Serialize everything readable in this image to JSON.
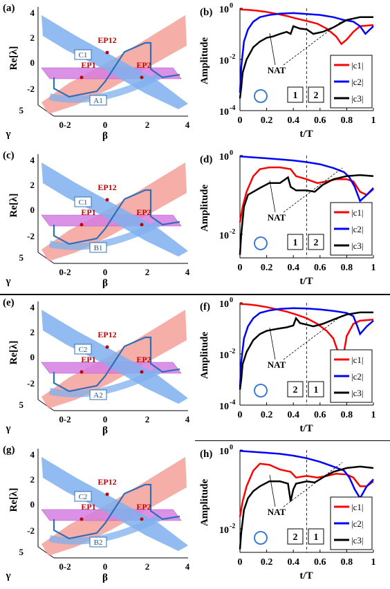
{
  "figure": {
    "separators": [
      true,
      true
    ]
  },
  "surface_panels": [
    {
      "id": "a",
      "panel_label": "(a)",
      "zlabel": "Re[λ]",
      "xlabel": "β",
      "ylabel": "γ",
      "z_ticks": [
        "4",
        "2",
        "0",
        "-2"
      ],
      "beta_ticks": [
        "0",
        "2",
        "4"
      ],
      "gamma_ticks": [
        "5",
        "0"
      ],
      "combined_tick": "0-2",
      "points": [
        {
          "label": "EP12",
          "color": "#c00000"
        },
        {
          "label": "EP1",
          "color": "#c00000"
        },
        {
          "label": "EP2",
          "color": "#c00000"
        }
      ],
      "boxes": [
        {
          "label": "C1"
        },
        {
          "label": "A1"
        }
      ]
    },
    {
      "id": "c",
      "panel_label": "(c)",
      "zlabel": "Re[λ]",
      "xlabel": "β",
      "ylabel": "γ",
      "z_ticks": [
        "4",
        "2",
        "0",
        "-2"
      ],
      "beta_ticks": [
        "0",
        "2",
        "4"
      ],
      "gamma_ticks": [
        "5",
        "0"
      ],
      "combined_tick": "0-2",
      "points": [
        {
          "label": "EP12",
          "color": "#c00000"
        },
        {
          "label": "EP1",
          "color": "#c00000"
        },
        {
          "label": "EP2",
          "color": "#c00000"
        }
      ],
      "boxes": [
        {
          "label": "C1"
        },
        {
          "label": "B1"
        }
      ]
    },
    {
      "id": "e",
      "panel_label": "(e)",
      "zlabel": "Re[λ]",
      "xlabel": "β",
      "ylabel": "γ",
      "z_ticks": [
        "4",
        "2",
        "0",
        "-2"
      ],
      "beta_ticks": [
        "0",
        "2",
        "4"
      ],
      "gamma_ticks": [
        "5",
        "0"
      ],
      "combined_tick": "0-2",
      "points": [
        {
          "label": "EP12",
          "color": "#c00000"
        },
        {
          "label": "EP1",
          "color": "#c00000"
        },
        {
          "label": "EP2",
          "color": "#c00000"
        }
      ],
      "boxes": [
        {
          "label": "C2"
        },
        {
          "label": "A2"
        }
      ]
    },
    {
      "id": "g",
      "panel_label": "(g)",
      "zlabel": "Re[λ]",
      "xlabel": "β",
      "ylabel": "γ",
      "z_ticks": [
        "4",
        "2",
        "0",
        "-2"
      ],
      "beta_ticks": [
        "0",
        "2",
        "4"
      ],
      "gamma_ticks": [
        "5",
        "0"
      ],
      "combined_tick": "0-2",
      "points": [
        {
          "label": "EP12",
          "color": "#c00000"
        },
        {
          "label": "EP1",
          "color": "#c00000"
        },
        {
          "label": "EP2",
          "color": "#c00000"
        }
      ],
      "boxes": [
        {
          "label": "C2"
        },
        {
          "label": "B2"
        }
      ]
    }
  ],
  "chart_data": [
    {
      "id": "b",
      "type": "line",
      "panel_label": "(b)",
      "title": "",
      "xlabel": "t/T",
      "ylabel": "Amplitude",
      "scale_y": "log",
      "xlim": [
        0,
        1
      ],
      "ylim_exp": [
        -4,
        0
      ],
      "x_ticks": [
        "0",
        "0.2",
        "0.4",
        "0.6",
        "0.8",
        "1"
      ],
      "y_ticks": [
        {
          "exp": 0,
          "label": "10",
          "sup": "0"
        },
        {
          "exp": -2,
          "label": "10",
          "sup": "-2"
        },
        {
          "exp": -4,
          "label": "10",
          "sup": "-4"
        }
      ],
      "annotation": "NAT",
      "boxes": [
        "1",
        "2"
      ],
      "legend_position": "bottom-right",
      "dashed_x": 0.5,
      "series": [
        {
          "name": "|c1|",
          "color": "#ff0000",
          "x": [
            0,
            0.05,
            0.12,
            0.2,
            0.28,
            0.35,
            0.42,
            0.5,
            0.58,
            0.65,
            0.72,
            0.76,
            0.8,
            0.85,
            0.9,
            1.0
          ],
          "y": [
            0.9,
            0.88,
            0.82,
            0.72,
            0.6,
            0.5,
            0.4,
            0.32,
            0.25,
            0.16,
            0.08,
            0.04,
            0.06,
            0.12,
            0.2,
            0.22
          ]
        },
        {
          "name": "|c2|",
          "color": "#0000ff",
          "x": [
            0,
            0.01,
            0.03,
            0.06,
            0.1,
            0.15,
            0.22,
            0.3,
            0.4,
            0.5,
            0.6,
            0.7,
            0.78,
            0.85,
            0.9,
            0.94,
            1.0
          ],
          "y": [
            0.0005,
            0.005,
            0.05,
            0.15,
            0.3,
            0.45,
            0.55,
            0.62,
            0.65,
            0.6,
            0.55,
            0.45,
            0.35,
            0.3,
            0.2,
            0.1,
            0.2
          ]
        },
        {
          "name": "|c3|",
          "color": "#000000",
          "x": [
            0,
            0.01,
            0.02,
            0.05,
            0.1,
            0.15,
            0.2,
            0.25,
            0.3,
            0.35,
            0.38,
            0.4,
            0.45,
            0.5,
            0.55,
            0.62,
            0.7,
            0.8,
            0.9,
            1.0
          ],
          "y": [
            0.0003,
            0.0008,
            0.003,
            0.01,
            0.03,
            0.05,
            0.07,
            0.08,
            0.1,
            0.12,
            0.1,
            0.2,
            0.16,
            0.15,
            0.1,
            0.12,
            0.18,
            0.35,
            0.45,
            0.45
          ]
        }
      ]
    },
    {
      "id": "d",
      "type": "line",
      "panel_label": "(d)",
      "title": "",
      "xlabel": "t/T",
      "ylabel": "Amplitude",
      "scale_y": "log",
      "xlim": [
        0,
        1
      ],
      "ylim_exp": [
        -2.6,
        0
      ],
      "x_ticks": [
        "0",
        "0.2",
        "0.4",
        "0.6",
        "0.8",
        "1"
      ],
      "y_ticks": [
        {
          "exp": 0,
          "label": "10",
          "sup": "0"
        },
        {
          "exp": -2,
          "label": "10",
          "sup": "-2"
        }
      ],
      "annotation": "NAT",
      "boxes": [
        "1",
        "2"
      ],
      "legend_position": "bottom-right",
      "dashed_x": 0.5,
      "series": [
        {
          "name": "|c1|",
          "color": "#ff0000",
          "x": [
            0,
            0.02,
            0.05,
            0.1,
            0.15,
            0.22,
            0.3,
            0.38,
            0.42,
            0.5,
            0.58,
            0.65,
            0.72,
            0.8,
            0.85,
            0.9,
            0.95,
            1.0
          ],
          "y": [
            0.02,
            0.05,
            0.12,
            0.3,
            0.45,
            0.5,
            0.5,
            0.45,
            0.3,
            0.25,
            0.2,
            0.22,
            0.25,
            0.25,
            0.22,
            0.12,
            0.1,
            0.14
          ]
        },
        {
          "name": "|c2|",
          "color": "#0000ff",
          "x": [
            0,
            0.1,
            0.2,
            0.3,
            0.4,
            0.5,
            0.6,
            0.7,
            0.78,
            0.82,
            0.86,
            0.9,
            0.95,
            1.0
          ],
          "y": [
            0.95,
            0.9,
            0.85,
            0.8,
            0.75,
            0.68,
            0.6,
            0.48,
            0.38,
            0.28,
            0.16,
            0.07,
            0.1,
            0.15
          ]
        },
        {
          "name": "|c3|",
          "color": "#000000",
          "x": [
            0,
            0.01,
            0.03,
            0.06,
            0.1,
            0.15,
            0.22,
            0.3,
            0.36,
            0.38,
            0.42,
            0.5,
            0.56,
            0.62,
            0.7,
            0.8,
            0.9,
            1.0
          ],
          "y": [
            0.003,
            0.01,
            0.05,
            0.1,
            0.12,
            0.15,
            0.2,
            0.2,
            0.28,
            0.16,
            0.13,
            0.13,
            0.12,
            0.18,
            0.25,
            0.3,
            0.32,
            0.3
          ]
        }
      ]
    },
    {
      "id": "f",
      "type": "line",
      "panel_label": "(f)",
      "title": "",
      "xlabel": "t/T",
      "ylabel": "Amplitude",
      "scale_y": "log",
      "xlim": [
        0,
        1
      ],
      "ylim_exp": [
        -4,
        0
      ],
      "x_ticks": [
        "0",
        "0.2",
        "0.4",
        "0.6",
        "0.8",
        "1"
      ],
      "y_ticks": [
        {
          "exp": 0,
          "label": "10",
          "sup": "0"
        },
        {
          "exp": -2,
          "label": "10",
          "sup": "-2"
        },
        {
          "exp": -4,
          "label": "10",
          "sup": "-4"
        }
      ],
      "annotation": "NAT",
      "boxes": [
        "2",
        "1"
      ],
      "legend_position": "bottom-right",
      "dashed_x": 0.5,
      "series": [
        {
          "name": "|c1|",
          "color": "#ff0000",
          "x": [
            0,
            0.05,
            0.12,
            0.2,
            0.28,
            0.35,
            0.42,
            0.5,
            0.58,
            0.65,
            0.7,
            0.74,
            0.77,
            0.8,
            0.85,
            0.9,
            1.0
          ],
          "y": [
            0.9,
            0.88,
            0.8,
            0.68,
            0.55,
            0.45,
            0.35,
            0.25,
            0.15,
            0.08,
            0.04,
            0.01,
            0.006,
            0.05,
            0.15,
            0.2,
            0.22
          ]
        },
        {
          "name": "|c2|",
          "color": "#0000ff",
          "x": [
            0,
            0.01,
            0.03,
            0.06,
            0.1,
            0.15,
            0.22,
            0.3,
            0.4,
            0.5,
            0.6,
            0.7,
            0.8,
            0.85,
            0.88,
            0.9,
            0.95,
            1.0
          ],
          "y": [
            0.0005,
            0.005,
            0.04,
            0.12,
            0.25,
            0.4,
            0.5,
            0.58,
            0.62,
            0.6,
            0.55,
            0.48,
            0.4,
            0.3,
            0.12,
            0.06,
            0.12,
            0.2
          ]
        },
        {
          "name": "|c3|",
          "color": "#000000",
          "x": [
            0,
            0.01,
            0.02,
            0.05,
            0.1,
            0.15,
            0.2,
            0.25,
            0.3,
            0.35,
            0.4,
            0.42,
            0.45,
            0.5,
            0.55,
            0.62,
            0.7,
            0.8,
            0.9,
            1.0
          ],
          "y": [
            0.0004,
            0.001,
            0.004,
            0.012,
            0.035,
            0.06,
            0.08,
            0.09,
            0.1,
            0.11,
            0.13,
            0.25,
            0.16,
            0.14,
            0.12,
            0.15,
            0.22,
            0.35,
            0.42,
            0.42
          ]
        }
      ]
    },
    {
      "id": "h",
      "type": "line",
      "panel_label": "(h)",
      "title": "",
      "xlabel": "t/T",
      "ylabel": "Amplitude",
      "scale_y": "log",
      "xlim": [
        0,
        1
      ],
      "ylim_exp": [
        -2.6,
        0
      ],
      "x_ticks": [
        "0",
        "0.2",
        "0.4",
        "0.6",
        "0.8",
        "1"
      ],
      "y_ticks": [
        {
          "exp": 0,
          "label": "10",
          "sup": "0"
        },
        {
          "exp": -2,
          "label": "10",
          "sup": "-2"
        }
      ],
      "annotation": "NAT",
      "boxes": [
        "2",
        "1"
      ],
      "legend_position": "bottom-right",
      "dashed_x": 0.5,
      "series": [
        {
          "name": "|c1|",
          "color": "#ff0000",
          "x": [
            0,
            0.02,
            0.05,
            0.1,
            0.15,
            0.22,
            0.3,
            0.38,
            0.42,
            0.5,
            0.58,
            0.65,
            0.72,
            0.8,
            0.85,
            0.9,
            0.95,
            1.0
          ],
          "y": [
            0.02,
            0.05,
            0.12,
            0.3,
            0.45,
            0.42,
            0.32,
            0.28,
            0.2,
            0.22,
            0.2,
            0.22,
            0.25,
            0.24,
            0.2,
            0.12,
            0.12,
            0.16
          ]
        },
        {
          "name": "|c2|",
          "color": "#0000ff",
          "x": [
            0,
            0.1,
            0.2,
            0.3,
            0.4,
            0.5,
            0.6,
            0.7,
            0.78,
            0.82,
            0.86,
            0.9,
            0.95,
            1.0
          ],
          "y": [
            0.95,
            0.9,
            0.85,
            0.8,
            0.72,
            0.62,
            0.5,
            0.38,
            0.3,
            0.2,
            0.1,
            0.06,
            0.12,
            0.18
          ]
        },
        {
          "name": "|c3|",
          "color": "#000000",
          "x": [
            0,
            0.01,
            0.03,
            0.06,
            0.1,
            0.15,
            0.22,
            0.3,
            0.36,
            0.38,
            0.4,
            0.42,
            0.5,
            0.56,
            0.62,
            0.7,
            0.8,
            0.9,
            1.0
          ],
          "y": [
            0.003,
            0.008,
            0.03,
            0.06,
            0.09,
            0.12,
            0.16,
            0.16,
            0.14,
            0.05,
            0.1,
            0.14,
            0.16,
            0.15,
            0.2,
            0.28,
            0.35,
            0.38,
            0.35
          ]
        }
      ]
    }
  ]
}
